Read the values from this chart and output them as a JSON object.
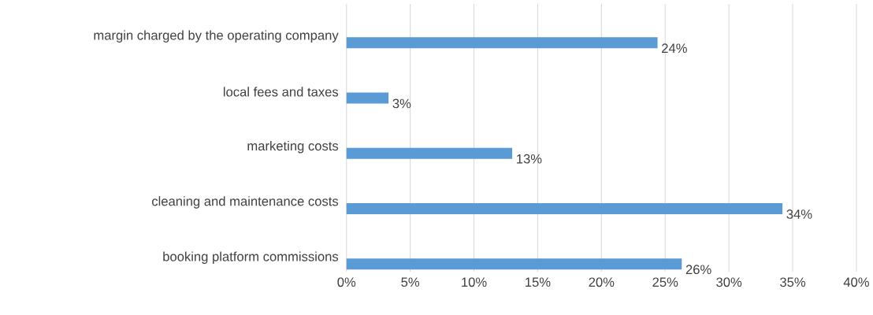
{
  "chart_data": {
    "type": "bar",
    "orientation": "horizontal",
    "categories": [
      "margin charged by the operating company",
      "local fees and taxes",
      "marketing costs",
      "cleaning and maintenance costs",
      "booking platform commissions"
    ],
    "values": [
      24.4,
      3.3,
      13.0,
      34.2,
      26.3
    ],
    "value_labels": [
      "24%",
      "3%",
      "13%",
      "34%",
      "26%"
    ],
    "color": "#5b9bd5",
    "xlim": [
      0,
      40
    ],
    "xticks": [
      {
        "value": 0,
        "label": "0%"
      },
      {
        "value": 5,
        "label": "5%"
      },
      {
        "value": 10,
        "label": "10%"
      },
      {
        "value": 15,
        "label": "15%"
      },
      {
        "value": 20,
        "label": "20%"
      },
      {
        "value": 25,
        "label": "25%"
      },
      {
        "value": 30,
        "label": "30%"
      },
      {
        "value": 35,
        "label": "35%"
      },
      {
        "value": 40,
        "label": "40%"
      }
    ],
    "grid": "x"
  }
}
